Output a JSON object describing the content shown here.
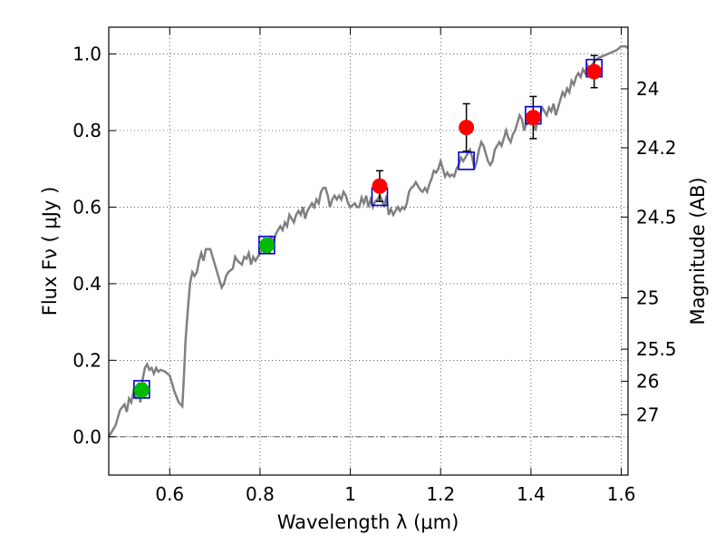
{
  "chart_data": {
    "type": "line",
    "title": "",
    "xlabel": "Wavelength  λ (μm)",
    "ylabel": "Flux  Fν  ( μJy )",
    "ylabel_right": "Magnitude (AB)",
    "xlim": [
      0.465,
      1.615
    ],
    "ylim": [
      -0.1,
      1.07
    ],
    "grid": true,
    "x_ticks": [
      {
        "value": 0.6,
        "label": "0.6"
      },
      {
        "value": 0.8,
        "label": "0.8"
      },
      {
        "value": 1.0,
        "label": "1"
      },
      {
        "value": 1.2,
        "label": "1.2"
      },
      {
        "value": 1.4,
        "label": "1.4"
      },
      {
        "value": 1.6,
        "label": "1.6"
      }
    ],
    "y_ticks": [
      {
        "value": 0.0,
        "label": "0.0"
      },
      {
        "value": 0.2,
        "label": "0.2"
      },
      {
        "value": 0.4,
        "label": "0.4"
      },
      {
        "value": 0.6,
        "label": "0.6"
      },
      {
        "value": 0.8,
        "label": "0.8"
      },
      {
        "value": 1.0,
        "label": "1.0"
      }
    ],
    "magnitude_ticks": [
      {
        "flux": 0.909,
        "label": "24"
      },
      {
        "flux": 0.755,
        "label": "24.2"
      },
      {
        "flux": 0.574,
        "label": "24.5"
      },
      {
        "flux": 0.363,
        "label": "25"
      },
      {
        "flux": 0.229,
        "label": "25.5"
      },
      {
        "flux": 0.145,
        "label": "26"
      },
      {
        "flux": 0.058,
        "label": "27"
      }
    ],
    "colors": {
      "spectrum": "#808080",
      "model_box": "#0000cc",
      "optical_point": "#00bb00",
      "nir_point": "#ff0000",
      "errorbar": "#000000",
      "zero_line": "#555555"
    },
    "series": [
      {
        "name": "spectrum",
        "points": [
          [
            0.465,
            0.0
          ],
          [
            0.48,
            0.03
          ],
          [
            0.49,
            0.07
          ],
          [
            0.5,
            0.085
          ],
          [
            0.505,
            0.065
          ],
          [
            0.51,
            0.1
          ],
          [
            0.515,
            0.09
          ],
          [
            0.52,
            0.12
          ],
          [
            0.525,
            0.105
          ],
          [
            0.53,
            0.135
          ],
          [
            0.535,
            0.09
          ],
          [
            0.54,
            0.15
          ],
          [
            0.545,
            0.18
          ],
          [
            0.55,
            0.19
          ],
          [
            0.555,
            0.175
          ],
          [
            0.56,
            0.18
          ],
          [
            0.565,
            0.165
          ],
          [
            0.57,
            0.18
          ],
          [
            0.575,
            0.17
          ],
          [
            0.58,
            0.175
          ],
          [
            0.59,
            0.17
          ],
          [
            0.6,
            0.16
          ],
          [
            0.605,
            0.14
          ],
          [
            0.61,
            0.12
          ],
          [
            0.62,
            0.09
          ],
          [
            0.628,
            0.08
          ],
          [
            0.632,
            0.17
          ],
          [
            0.635,
            0.25
          ],
          [
            0.64,
            0.33
          ],
          [
            0.645,
            0.4
          ],
          [
            0.65,
            0.43
          ],
          [
            0.655,
            0.42
          ],
          [
            0.66,
            0.43
          ],
          [
            0.665,
            0.46
          ],
          [
            0.67,
            0.48
          ],
          [
            0.675,
            0.46
          ],
          [
            0.68,
            0.49
          ],
          [
            0.69,
            0.49
          ],
          [
            0.695,
            0.47
          ],
          [
            0.7,
            0.45
          ],
          [
            0.705,
            0.43
          ],
          [
            0.71,
            0.41
          ],
          [
            0.715,
            0.39
          ],
          [
            0.72,
            0.4
          ],
          [
            0.725,
            0.42
          ],
          [
            0.73,
            0.43
          ],
          [
            0.74,
            0.44
          ],
          [
            0.745,
            0.47
          ],
          [
            0.75,
            0.46
          ],
          [
            0.755,
            0.455
          ],
          [
            0.76,
            0.45
          ],
          [
            0.765,
            0.47
          ],
          [
            0.77,
            0.465
          ],
          [
            0.775,
            0.48
          ],
          [
            0.78,
            0.45
          ],
          [
            0.785,
            0.47
          ],
          [
            0.79,
            0.46
          ],
          [
            0.8,
            0.48
          ],
          [
            0.81,
            0.5
          ],
          [
            0.82,
            0.5
          ],
          [
            0.825,
            0.52
          ],
          [
            0.83,
            0.51
          ],
          [
            0.835,
            0.53
          ],
          [
            0.84,
            0.54
          ],
          [
            0.845,
            0.55
          ],
          [
            0.85,
            0.54
          ],
          [
            0.855,
            0.56
          ],
          [
            0.86,
            0.55
          ],
          [
            0.865,
            0.58
          ],
          [
            0.87,
            0.57
          ],
          [
            0.875,
            0.56
          ],
          [
            0.88,
            0.58
          ],
          [
            0.885,
            0.59
          ],
          [
            0.89,
            0.58
          ],
          [
            0.895,
            0.6
          ],
          [
            0.9,
            0.57
          ],
          [
            0.905,
            0.59
          ],
          [
            0.91,
            0.6
          ],
          [
            0.915,
            0.61
          ],
          [
            0.92,
            0.6
          ],
          [
            0.925,
            0.62
          ],
          [
            0.93,
            0.61
          ],
          [
            0.935,
            0.64
          ],
          [
            0.94,
            0.65
          ],
          [
            0.945,
            0.65
          ],
          [
            0.95,
            0.63
          ],
          [
            0.955,
            0.6
          ],
          [
            0.96,
            0.62
          ],
          [
            0.965,
            0.63
          ],
          [
            0.97,
            0.62
          ],
          [
            0.975,
            0.63
          ],
          [
            0.98,
            0.62
          ],
          [
            0.985,
            0.64
          ],
          [
            0.99,
            0.63
          ],
          [
            0.995,
            0.61
          ],
          [
            1.0,
            0.6
          ],
          [
            1.005,
            0.605
          ],
          [
            1.01,
            0.61
          ],
          [
            1.015,
            0.6
          ],
          [
            1.02,
            0.6
          ],
          [
            1.025,
            0.625
          ],
          [
            1.03,
            0.61
          ],
          [
            1.035,
            0.63
          ],
          [
            1.04,
            0.6
          ],
          [
            1.045,
            0.62
          ],
          [
            1.05,
            0.6
          ],
          [
            1.055,
            0.615
          ],
          [
            1.06,
            0.62
          ],
          [
            1.065,
            0.63
          ],
          [
            1.07,
            0.62
          ],
          [
            1.075,
            0.6
          ],
          [
            1.08,
            0.63
          ],
          [
            1.085,
            0.58
          ],
          [
            1.09,
            0.595
          ],
          [
            1.095,
            0.58
          ],
          [
            1.1,
            0.59
          ],
          [
            1.105,
            0.6
          ],
          [
            1.11,
            0.59
          ],
          [
            1.115,
            0.6
          ],
          [
            1.12,
            0.595
          ],
          [
            1.125,
            0.61
          ],
          [
            1.13,
            0.64
          ],
          [
            1.135,
            0.65
          ],
          [
            1.14,
            0.655
          ],
          [
            1.145,
            0.665
          ],
          [
            1.15,
            0.655
          ],
          [
            1.155,
            0.645
          ],
          [
            1.16,
            0.64
          ],
          [
            1.165,
            0.65
          ],
          [
            1.17,
            0.64
          ],
          [
            1.175,
            0.66
          ],
          [
            1.18,
            0.675
          ],
          [
            1.185,
            0.695
          ],
          [
            1.19,
            0.69
          ],
          [
            1.195,
            0.7
          ],
          [
            1.2,
            0.72
          ],
          [
            1.205,
            0.7
          ],
          [
            1.21,
            0.68
          ],
          [
            1.215,
            0.69
          ],
          [
            1.22,
            0.68
          ],
          [
            1.225,
            0.685
          ],
          [
            1.23,
            0.68
          ],
          [
            1.235,
            0.7
          ],
          [
            1.24,
            0.71
          ],
          [
            1.245,
            0.73
          ],
          [
            1.25,
            0.72
          ],
          [
            1.255,
            0.73
          ],
          [
            1.26,
            0.74
          ],
          [
            1.265,
            0.75
          ],
          [
            1.27,
            0.73
          ],
          [
            1.275,
            0.7
          ],
          [
            1.28,
            0.72
          ],
          [
            1.285,
            0.75
          ],
          [
            1.29,
            0.77
          ],
          [
            1.295,
            0.76
          ],
          [
            1.3,
            0.74
          ],
          [
            1.305,
            0.72
          ],
          [
            1.31,
            0.71
          ],
          [
            1.315,
            0.72
          ],
          [
            1.32,
            0.75
          ],
          [
            1.325,
            0.76
          ],
          [
            1.33,
            0.77
          ],
          [
            1.335,
            0.76
          ],
          [
            1.34,
            0.78
          ],
          [
            1.345,
            0.8
          ],
          [
            1.35,
            0.78
          ],
          [
            1.355,
            0.77
          ],
          [
            1.36,
            0.79
          ],
          [
            1.365,
            0.8
          ],
          [
            1.37,
            0.82
          ],
          [
            1.375,
            0.84
          ],
          [
            1.38,
            0.83
          ],
          [
            1.385,
            0.8
          ],
          [
            1.39,
            0.82
          ],
          [
            1.395,
            0.83
          ],
          [
            1.4,
            0.84
          ],
          [
            1.405,
            0.82
          ],
          [
            1.41,
            0.8
          ],
          [
            1.415,
            0.83
          ],
          [
            1.42,
            0.84
          ],
          [
            1.425,
            0.86
          ],
          [
            1.43,
            0.85
          ],
          [
            1.435,
            0.84
          ],
          [
            1.44,
            0.86
          ],
          [
            1.445,
            0.85
          ],
          [
            1.45,
            0.87
          ],
          [
            1.455,
            0.84
          ],
          [
            1.46,
            0.86
          ],
          [
            1.465,
            0.88
          ],
          [
            1.47,
            0.9
          ],
          [
            1.475,
            0.89
          ],
          [
            1.48,
            0.91
          ],
          [
            1.485,
            0.9
          ],
          [
            1.49,
            0.93
          ],
          [
            1.495,
            0.92
          ],
          [
            1.5,
            0.94
          ],
          [
            1.505,
            0.95
          ],
          [
            1.51,
            0.94
          ],
          [
            1.515,
            0.96
          ],
          [
            1.52,
            0.95
          ],
          [
            1.525,
            0.97
          ],
          [
            1.53,
            0.96
          ],
          [
            1.54,
            0.98
          ],
          [
            1.55,
            0.99
          ],
          [
            1.56,
            0.995
          ],
          [
            1.57,
            1.0
          ],
          [
            1.58,
            1.005
          ],
          [
            1.59,
            1.01
          ],
          [
            1.6,
            1.02
          ],
          [
            1.61,
            1.02
          ],
          [
            1.615,
            1.015
          ]
        ]
      },
      {
        "name": "model_boxes",
        "points": [
          [
            0.538,
            0.124
          ],
          [
            0.815,
            0.501
          ],
          [
            1.065,
            0.627
          ],
          [
            1.257,
            0.721
          ],
          [
            1.405,
            0.84
          ],
          [
            1.54,
            0.963
          ]
        ]
      },
      {
        "name": "optical_points",
        "points": [
          {
            "x": 0.538,
            "y": 0.122,
            "err": 0.018
          },
          {
            "x": 0.815,
            "y": 0.5,
            "err": 0.018
          }
        ]
      },
      {
        "name": "nir_points",
        "points": [
          {
            "x": 1.065,
            "y": 0.655,
            "err": 0.04
          },
          {
            "x": 1.257,
            "y": 0.808,
            "err": 0.062
          },
          {
            "x": 1.405,
            "y": 0.834,
            "err": 0.055
          },
          {
            "x": 1.54,
            "y": 0.954,
            "err": 0.042
          }
        ]
      }
    ]
  }
}
